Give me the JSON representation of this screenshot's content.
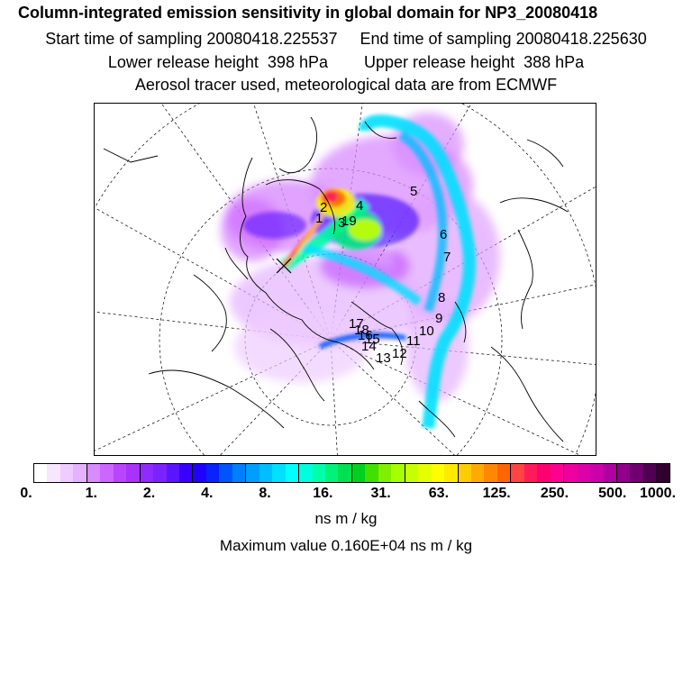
{
  "header": {
    "title": "Column-integrated emission sensitivity in global domain for NP3_20080418",
    "sampling_times": "Start time of sampling 20080418.225537     End time of sampling 20080418.225630",
    "release_heights": "Lower release height  398 hPa        Upper release height  388 hPa",
    "tracer_info": "Aerosol tracer used, meteorological data are from ECMWF"
  },
  "map": {
    "day_labels": [
      "1",
      "2",
      "3",
      "4",
      "5",
      "6",
      "7",
      "8",
      "9",
      "10",
      "11",
      "12",
      "13",
      "14",
      "15",
      "16",
      "17",
      "18",
      "19"
    ]
  },
  "legend": {
    "tick_labels": [
      "0.",
      "1.",
      "2.",
      "4.",
      "8.",
      "16.",
      "31.",
      "63.",
      "125.",
      "250.",
      "500.",
      "1000."
    ],
    "colors": [
      "#ffffff",
      "#f6e6ff",
      "#eeccff",
      "#e4b2ff",
      "#d88aff",
      "#cc66ff",
      "#bb44ff",
      "#a833ff",
      "#8f2bff",
      "#7a22ff",
      "#5a14ff",
      "#3a00ff",
      "#2000ff",
      "#0a22ff",
      "#0055ff",
      "#007fff",
      "#009fff",
      "#00bfff",
      "#00e0ff",
      "#00ffff",
      "#00ffdf",
      "#00ffaa",
      "#00f27a",
      "#00e050",
      "#00d020",
      "#40e000",
      "#80f000",
      "#a8ff00",
      "#c8ff00",
      "#e6ff00",
      "#ffff00",
      "#ffea00",
      "#ffcc00",
      "#ffaa00",
      "#ff8800",
      "#ff6600",
      "#ff4444",
      "#ff1a5a",
      "#ff0070",
      "#ff0090",
      "#ee00a0",
      "#dd00aa",
      "#cc00aa",
      "#b000a0",
      "#90008a",
      "#700070",
      "#500050",
      "#300030"
    ],
    "unit_label": "ns m / kg",
    "max_value": "Maximum value  0.160E+04 ns m / kg"
  }
}
